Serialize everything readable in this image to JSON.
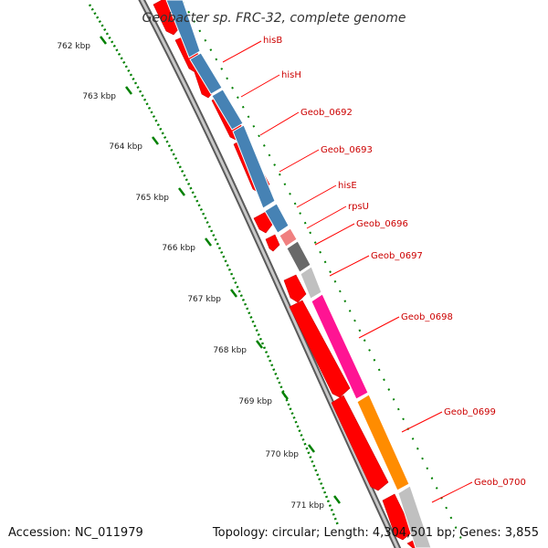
{
  "title": "Geobacter sp. FRC-32, complete genome",
  "accession": "Accession: NC_011979",
  "summary": "Topology: circular; Length: 4,304,501 bp; Genes: 3,855",
  "ruler_ticks": [
    "762 kbp",
    "763 kbp",
    "764 kbp",
    "765 kbp",
    "766 kbp",
    "767 kbp",
    "768 kbp",
    "769 kbp",
    "770 kbp",
    "771 kbp"
  ],
  "genes": [
    {
      "name": "hisB",
      "color": "#4682b4"
    },
    {
      "name": "hisH",
      "color": "#4682b4"
    },
    {
      "name": "Geob_0692",
      "color": "#4682b4"
    },
    {
      "name": "Geob_0693",
      "color": "#4682b4"
    },
    {
      "name": "hisE",
      "color": "#4682b4"
    },
    {
      "name": "rpsU",
      "color": "#f08080"
    },
    {
      "name": "Geob_0696",
      "color": "#696969"
    },
    {
      "name": "Geob_0697",
      "color": "#c0c0c0"
    },
    {
      "name": "Geob_0698",
      "color": "#ff1493"
    },
    {
      "name": "Geob_0699",
      "color": "#ff8c00"
    },
    {
      "name": "Geob_0700",
      "color": "#c0c0c0"
    }
  ],
  "colors": {
    "cds_arrow": "#ff0000",
    "label_line": "#ff0000",
    "label_text": "#cc0000",
    "ruler_dots": "#008000",
    "backbone": "#808080"
  }
}
